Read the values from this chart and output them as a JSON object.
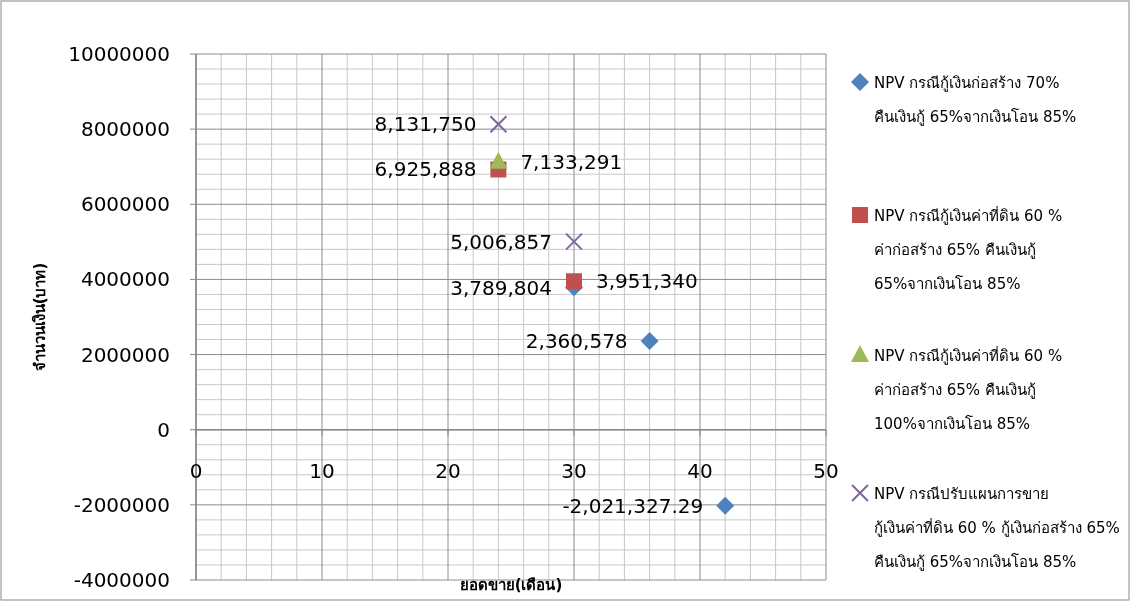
{
  "chart_data": {
    "type": "scatter",
    "xlabel": "ยอดขาย(เดือน)",
    "ylabel": "จำนวนเงิน(บาท)",
    "xlim": [
      0,
      50
    ],
    "xticks": [
      0,
      10,
      20,
      30,
      40,
      50
    ],
    "ylim": [
      -4000000,
      10000000
    ],
    "yticks": [
      -4000000,
      -2000000,
      0,
      2000000,
      4000000,
      6000000,
      8000000,
      10000000
    ],
    "grid": true,
    "legend": "right",
    "series": [
      {
        "name": "NPV กรณีกู้เงินก่อสร้าง 70% คืนเงินกู้ 65%จากเงินโอน 85%",
        "color": "#4f81bd",
        "marker": "diamond",
        "x": [
          30,
          36,
          42
        ],
        "values": [
          3789804,
          2360578,
          -2021327.29
        ],
        "value_labels": [
          "3,789,804",
          "2,360,578",
          "-2,021,327.29"
        ]
      },
      {
        "name": "NPV กรณีกู้เงินค่าที่ดิน 60 % ค่าก่อสร้าง 65% คืนเงินกู้ 65%จากเงินโอน 85%",
        "color": "#c0504d",
        "marker": "square",
        "x": [
          24,
          30
        ],
        "values": [
          6925888,
          3951340
        ],
        "value_labels": [
          "6,925,888",
          "3,951,340"
        ]
      },
      {
        "name": "NPV กรณีกู้เงินค่าที่ดิน 60 % ค่าก่อสร้าง 65% คืนเงินกู้ 100%จากเงินโอน 85%",
        "color": "#9bbb59",
        "marker": "triangle",
        "x": [
          24
        ],
        "values": [
          7133291
        ],
        "value_labels": [
          "7,133,291"
        ]
      },
      {
        "name": "NPV กรณีปรับแผนการขาย กู้เงินค่าที่ดิน 60 % กู้เงินก่อสร้าง 65% คืนเงินกู้ 65%จากเงินโอน 85%",
        "color": "#8064a2",
        "marker": "cross",
        "x": [
          24,
          30
        ],
        "values": [
          8131750,
          5006857
        ],
        "value_labels": [
          "8,131,750",
          "5,006,857"
        ]
      }
    ]
  }
}
